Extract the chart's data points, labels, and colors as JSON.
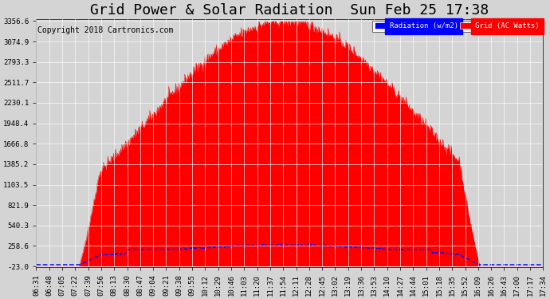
{
  "title": "Grid Power & Solar Radiation  Sun Feb 25 17:38",
  "copyright": "Copyright 2018 Cartronics.com",
  "legend_labels": [
    "Radiation (w/m2)",
    "Grid (AC Watts)"
  ],
  "legend_colors": [
    "#0000ff",
    "#ff0000"
  ],
  "yticks": [
    -23.0,
    258.6,
    540.3,
    821.9,
    1103.5,
    1385.2,
    1666.8,
    1948.4,
    2230.1,
    2511.7,
    2793.3,
    3074.9,
    3356.6
  ],
  "ylim": [
    -23.0,
    3356.6
  ],
  "xtick_labels": [
    "06:31",
    "06:48",
    "07:05",
    "07:22",
    "07:39",
    "07:56",
    "08:13",
    "08:30",
    "08:47",
    "09:04",
    "09:21",
    "09:38",
    "09:55",
    "10:12",
    "10:29",
    "10:46",
    "11:03",
    "11:20",
    "11:37",
    "11:54",
    "12:11",
    "12:28",
    "12:45",
    "13:02",
    "13:19",
    "13:36",
    "13:53",
    "14:10",
    "14:27",
    "14:44",
    "15:01",
    "15:18",
    "15:35",
    "15:52",
    "16:09",
    "16:26",
    "16:43",
    "17:00",
    "17:17",
    "17:34"
  ],
  "background_color": "#d4d4d4",
  "plot_bg_color": "#d4d4d4",
  "grid_color": "#ffffff",
  "red_fill_color": "#ff0000",
  "blue_line_color": "#0000ff",
  "title_fontsize": 13,
  "copyright_fontsize": 7,
  "tick_fontsize": 6.5
}
